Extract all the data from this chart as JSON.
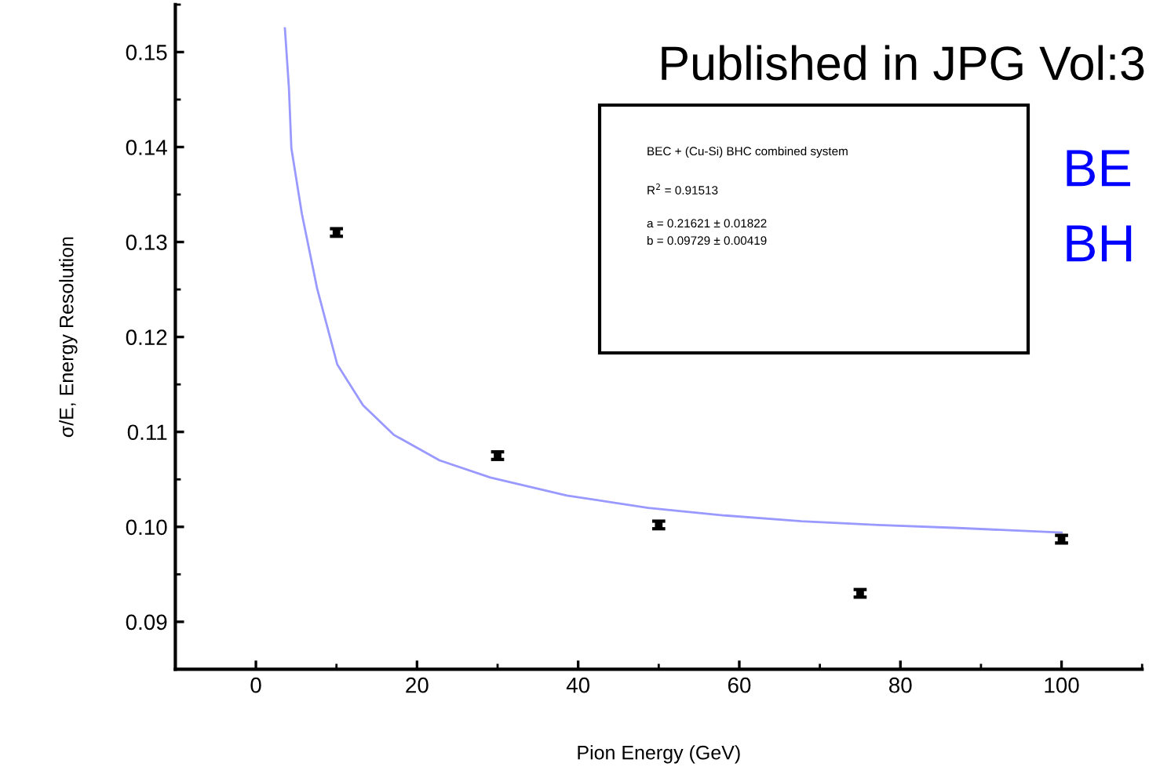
{
  "chart_data": {
    "type": "scatter",
    "xlabel": "Pion Energy (GeV)",
    "ylabel": "σ/E, Energy Resolution",
    "annotations": [
      "Published in JPG Vol:3",
      "BE",
      "BH",
      "BEC + (Cu-Si) BHC combined system",
      "R$^{2}$ = 0.91513",
      "a = 0.21621 ± 0.01822",
      "b = 0.09729 ± 0.00419"
    ],
    "series": [
      {
        "color": "#000000",
        "marker": "square",
        "x": [
          10,
          30,
          50,
          75,
          100
        ],
        "values": [
          0.131,
          0.1075,
          0.1002,
          0.093,
          0.0987
        ],
        "errors": [
          0.0004,
          0.0004,
          0.0004,
          0.0004,
          0.0004
        ]
      },
      {
        "type": "line",
        "color": "#9999ff",
        "marker": "none",
        "line_style": "solid",
        "x": [
          3.6,
          4.1,
          4.4,
          5.7,
          7.6,
          10.1,
          13.3,
          17.1,
          22.8,
          29.1,
          38.6,
          48.7,
          58.2,
          67.7,
          77.2,
          86.6,
          100
        ],
        "values": [
          0.1525,
          0.1462,
          0.1399,
          0.133,
          0.1251,
          0.1171,
          0.1128,
          0.1097,
          0.107,
          0.1052,
          0.1033,
          0.102,
          0.1012,
          0.1006,
          0.1002,
          0.0999,
          0.0994
        ]
      }
    ],
    "xlim": [
      -10,
      110
    ],
    "ylim": [
      0.085,
      0.155
    ],
    "xticks": [
      0,
      20,
      40,
      60,
      80,
      100
    ],
    "yticks": [
      0.09,
      {
        "value": 0.1,
        "label": "0.10"
      },
      0.11,
      0.12,
      0.13,
      0.14,
      0.15
    ],
    "grid": false,
    "legend": false
  }
}
